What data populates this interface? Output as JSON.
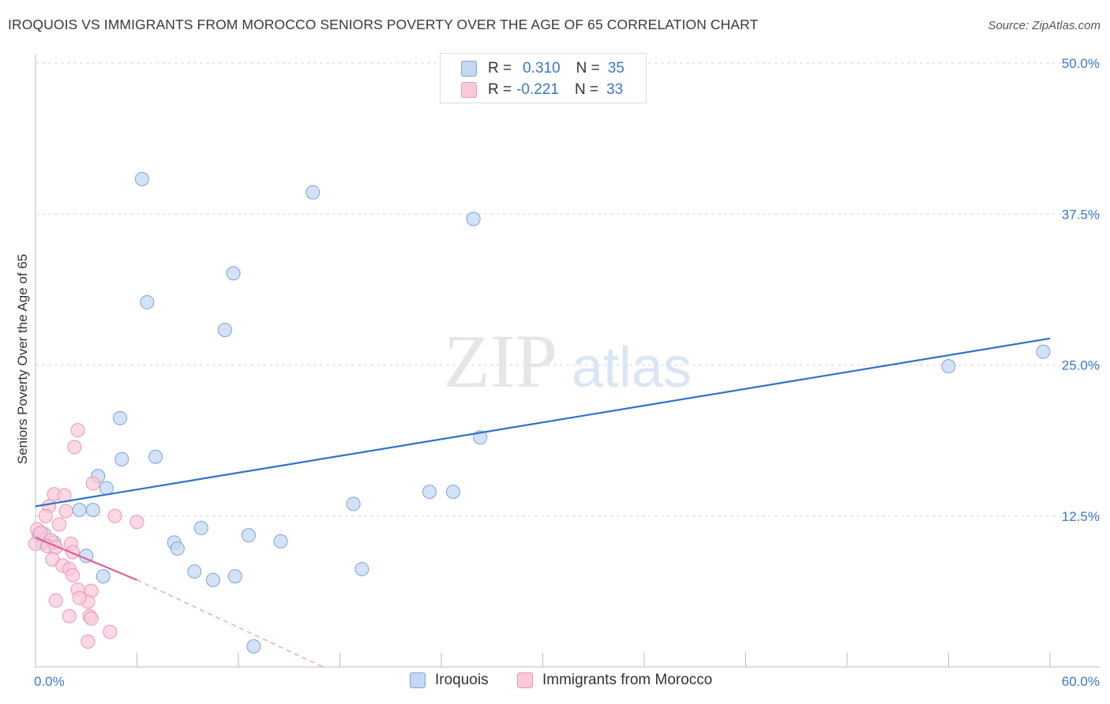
{
  "title": "IROQUOIS VS IMMIGRANTS FROM MOROCCO SENIORS POVERTY OVER THE AGE OF 65 CORRELATION CHART",
  "source": "Source: ZipAtlas.com",
  "watermark": {
    "zip": "ZIP",
    "atlas": "atlas"
  },
  "legend_top": [
    {
      "r_label": "R =",
      "r_value": "0.310",
      "n_label": "N =",
      "n_value": "35"
    },
    {
      "r_label": "R =",
      "r_value": "-0.221",
      "n_label": "N =",
      "n_value": "33"
    }
  ],
  "colors": {
    "iroquois_fill": "#c5d8f3",
    "iroquois_stroke": "#7aa3df",
    "iroquois_line": "#2f72c8",
    "morocco_fill": "#f9c9d8",
    "morocco_stroke": "#ef93b2",
    "morocco_line": "#e0609a",
    "grid": "#d8d8d8",
    "tick_text": "#3b78c8"
  },
  "chart_data": {
    "type": "scatter",
    "title": "IROQUOIS VS IMMIGRANTS FROM MOROCCO SENIORS POVERTY OVER THE AGE OF 65 CORRELATION CHART",
    "xlabel": "",
    "ylabel": "Seniors Poverty Over the Age of 65",
    "xlim": [
      0,
      60
    ],
    "ylim": [
      0,
      50
    ],
    "x_tick_labels": [
      "0.0%",
      "60.0%"
    ],
    "y_ticks": [
      12.5,
      25.0,
      37.5,
      50.0
    ],
    "y_tick_labels": [
      "12.5%",
      "25.0%",
      "37.5%",
      "50.0%"
    ],
    "grid": true,
    "legend_position": "bottom-center",
    "series": [
      {
        "name": "Iroquois",
        "r": 0.31,
        "n": 35,
        "trend": {
          "x": [
            0,
            60
          ],
          "y": [
            13.3,
            27.2
          ]
        },
        "points": [
          [
            6.3,
            40.4
          ],
          [
            16.4,
            39.3
          ],
          [
            25.9,
            37.1
          ],
          [
            11.7,
            32.6
          ],
          [
            6.6,
            30.2
          ],
          [
            11.2,
            27.9
          ],
          [
            59.6,
            26.1
          ],
          [
            54.0,
            24.9
          ],
          [
            5.0,
            20.6
          ],
          [
            26.3,
            19.0
          ],
          [
            7.1,
            17.4
          ],
          [
            5.1,
            17.2
          ],
          [
            3.7,
            15.8
          ],
          [
            4.2,
            14.8
          ],
          [
            23.3,
            14.5
          ],
          [
            24.7,
            14.5
          ],
          [
            18.8,
            13.5
          ],
          [
            2.6,
            13.0
          ],
          [
            3.4,
            13.0
          ],
          [
            9.8,
            11.5
          ],
          [
            12.6,
            10.9
          ],
          [
            14.5,
            10.4
          ],
          [
            8.2,
            10.3
          ],
          [
            1.1,
            10.3
          ],
          [
            0.4,
            10.3
          ],
          [
            0.2,
            11.0
          ],
          [
            0.5,
            11.0
          ],
          [
            8.4,
            9.8
          ],
          [
            3.0,
            9.2
          ],
          [
            19.3,
            8.1
          ],
          [
            9.4,
            7.9
          ],
          [
            4.0,
            7.5
          ],
          [
            11.8,
            7.5
          ],
          [
            10.5,
            7.2
          ],
          [
            12.9,
            1.7
          ]
        ]
      },
      {
        "name": "Immigrants from Morocco",
        "r": -0.221,
        "n": 33,
        "trend": {
          "x": [
            0,
            6
          ],
          "y": [
            10.7,
            7.2
          ]
        },
        "trend_extended": {
          "x": [
            6,
            17
          ],
          "y": [
            7.2,
            0.0
          ]
        },
        "points": [
          [
            2.5,
            19.6
          ],
          [
            2.3,
            18.2
          ],
          [
            3.4,
            15.2
          ],
          [
            1.1,
            14.3
          ],
          [
            1.7,
            14.2
          ],
          [
            0.8,
            13.3
          ],
          [
            1.8,
            12.9
          ],
          [
            0.6,
            12.5
          ],
          [
            4.7,
            12.5
          ],
          [
            6.0,
            12.0
          ],
          [
            1.4,
            11.8
          ],
          [
            0.1,
            11.4
          ],
          [
            0.3,
            11.1
          ],
          [
            0.9,
            10.5
          ],
          [
            2.1,
            10.2
          ],
          [
            0.0,
            10.2
          ],
          [
            0.7,
            10.0
          ],
          [
            1.2,
            9.9
          ],
          [
            2.2,
            9.5
          ],
          [
            1.0,
            8.9
          ],
          [
            1.6,
            8.4
          ],
          [
            2.0,
            8.1
          ],
          [
            2.2,
            7.6
          ],
          [
            2.5,
            6.4
          ],
          [
            3.3,
            6.3
          ],
          [
            1.2,
            5.5
          ],
          [
            3.1,
            5.4
          ],
          [
            2.6,
            5.7
          ],
          [
            2.0,
            4.2
          ],
          [
            3.2,
            4.2
          ],
          [
            3.3,
            4.0
          ],
          [
            4.4,
            2.9
          ],
          [
            3.1,
            2.1
          ]
        ]
      }
    ]
  },
  "legend_bottom": [
    {
      "label": "Iroquois"
    },
    {
      "label": "Immigrants from Morocco"
    }
  ]
}
